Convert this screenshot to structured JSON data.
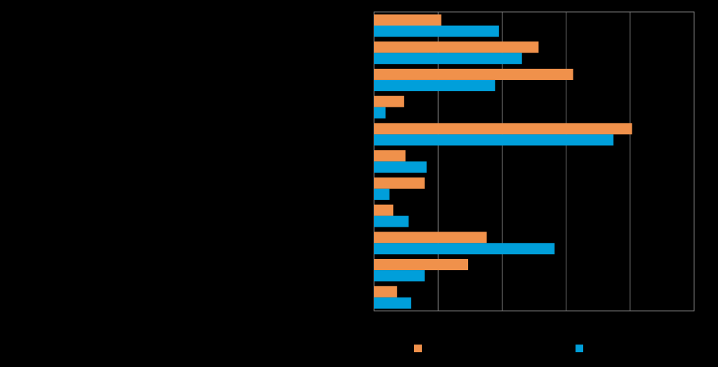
{
  "chart_data": {
    "type": "bar",
    "orientation": "horizontal",
    "title": "",
    "xlabel": "",
    "ylabel": "",
    "xlim": [
      0,
      50
    ],
    "x_gridlines": [
      10,
      20,
      30,
      40,
      50
    ],
    "grid": true,
    "legend_position": "bottom",
    "categories": [
      "",
      "",
      "",
      "",
      "",
      "",
      "",
      "",
      "",
      "",
      ""
    ],
    "series": [
      {
        "color": "#F0914B",
        "values": [
          10.5,
          25.7,
          31.1,
          4.7,
          40.3,
          4.9,
          7.9,
          3.0,
          17.6,
          14.7,
          3.6
        ]
      },
      {
        "color": "#009FDA",
        "values": [
          19.5,
          23.1,
          18.9,
          1.8,
          37.4,
          8.2,
          2.4,
          5.4,
          28.2,
          7.9,
          5.8
        ]
      }
    ]
  }
}
